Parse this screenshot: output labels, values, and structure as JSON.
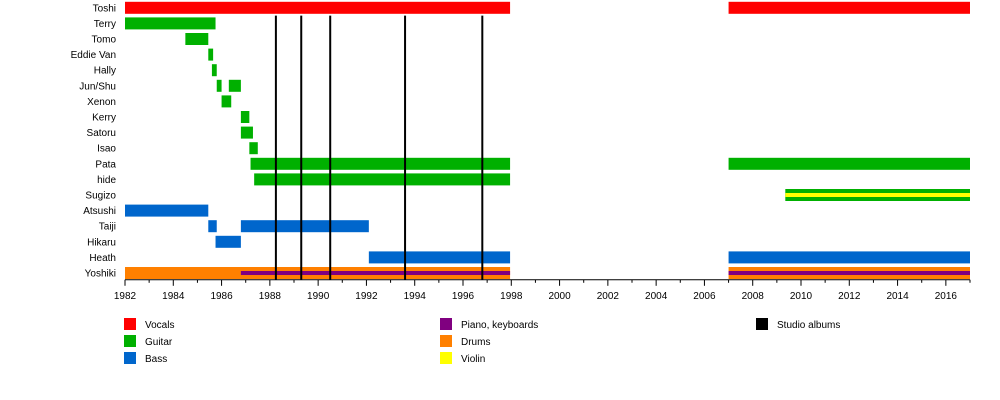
{
  "chart_data": {
    "type": "timeline",
    "title": "",
    "xlabel": "",
    "ylabel": "",
    "xlim": [
      1982,
      2017
    ],
    "x_ticks": [
      1982,
      1984,
      1986,
      1988,
      1990,
      1992,
      1994,
      1996,
      1998,
      2000,
      2002,
      2004,
      2006,
      2008,
      2010,
      2012,
      2014,
      2016
    ],
    "tick_labels": [
      "1982",
      "1984",
      "1986",
      "1988",
      "1990",
      "1992",
      "1994",
      "1996",
      "1998",
      "2000",
      "2002",
      "2004",
      "2006",
      "2008",
      "2010",
      "2012",
      "2014",
      "2016"
    ],
    "grid": false,
    "legend_position": "bottom",
    "colors": {
      "vocals": "#ff0000",
      "guitar": "#00b000",
      "bass": "#0066cc",
      "piano": "#800080",
      "drums": "#ff8000",
      "violin": "#ffff00",
      "studio_albums": "#000000"
    },
    "members": [
      {
        "name": "Toshi",
        "bars": [
          {
            "role": "vocals",
            "start": 1982,
            "end": 1997.95
          },
          {
            "role": "vocals",
            "start": 2007,
            "end": 2017
          }
        ]
      },
      {
        "name": "Terry",
        "bars": [
          {
            "role": "guitar",
            "start": 1982,
            "end": 1985.75
          }
        ]
      },
      {
        "name": "Tomo",
        "bars": [
          {
            "role": "guitar",
            "start": 1984.5,
            "end": 1985.45
          }
        ]
      },
      {
        "name": "Eddie Van",
        "bars": [
          {
            "role": "guitar",
            "start": 1985.45,
            "end": 1985.65
          }
        ]
      },
      {
        "name": "Hally",
        "bars": [
          {
            "role": "guitar",
            "start": 1985.6,
            "end": 1985.8
          }
        ]
      },
      {
        "name": "Jun/Shu",
        "bars": [
          {
            "role": "guitar",
            "start": 1985.8,
            "end": 1986.0
          },
          {
            "role": "guitar",
            "start": 1986.3,
            "end": 1986.8
          }
        ]
      },
      {
        "name": "Xenon",
        "bars": [
          {
            "role": "guitar",
            "start": 1986.0,
            "end": 1986.4
          }
        ]
      },
      {
        "name": "Kerry",
        "bars": [
          {
            "role": "guitar",
            "start": 1986.8,
            "end": 1987.15
          }
        ]
      },
      {
        "name": "Satoru",
        "bars": [
          {
            "role": "guitar",
            "start": 1986.8,
            "end": 1987.3
          }
        ]
      },
      {
        "name": "Isao",
        "bars": [
          {
            "role": "guitar",
            "start": 1987.15,
            "end": 1987.5
          }
        ]
      },
      {
        "name": "Pata",
        "bars": [
          {
            "role": "guitar",
            "start": 1987.2,
            "end": 1997.95
          },
          {
            "role": "guitar",
            "start": 2007,
            "end": 2017
          }
        ]
      },
      {
        "name": "hide",
        "bars": [
          {
            "role": "guitar",
            "start": 1987.35,
            "end": 1997.95
          }
        ]
      },
      {
        "name": "Sugizo",
        "bars": [
          {
            "role": "guitar",
            "start": 2009.35,
            "end": 2017,
            "overlay": "violin"
          }
        ]
      },
      {
        "name": "Atsushi",
        "bars": [
          {
            "role": "bass",
            "start": 1982,
            "end": 1985.45
          }
        ]
      },
      {
        "name": "Taiji",
        "bars": [
          {
            "role": "bass",
            "start": 1985.45,
            "end": 1985.8
          },
          {
            "role": "bass",
            "start": 1986.8,
            "end": 1992.1
          }
        ]
      },
      {
        "name": "Hikaru",
        "bars": [
          {
            "role": "bass",
            "start": 1985.75,
            "end": 1986.8
          }
        ]
      },
      {
        "name": "Heath",
        "bars": [
          {
            "role": "bass",
            "start": 1992.1,
            "end": 1997.95
          },
          {
            "role": "bass",
            "start": 2007,
            "end": 2017
          }
        ]
      },
      {
        "name": "Yoshiki",
        "bars": [
          {
            "role": "drums",
            "start": 1982,
            "end": 1997.95
          },
          {
            "role": "drums",
            "start": 2007,
            "end": 2017
          }
        ],
        "overlays": [
          {
            "role": "piano",
            "start": 1986.8,
            "end": 1997.95
          },
          {
            "role": "piano",
            "start": 2007,
            "end": 2017
          }
        ]
      }
    ],
    "studio_albums": [
      1988.25,
      1989.3,
      1990.5,
      1993.6,
      1996.8
    ],
    "legend": [
      {
        "key": "vocals",
        "label": "Vocals",
        "column": 0,
        "row": 0
      },
      {
        "key": "guitar",
        "label": "Guitar",
        "column": 0,
        "row": 1
      },
      {
        "key": "bass",
        "label": "Bass",
        "column": 0,
        "row": 2
      },
      {
        "key": "piano",
        "label": "Piano, keyboards",
        "column": 1,
        "row": 0
      },
      {
        "key": "drums",
        "label": "Drums",
        "column": 1,
        "row": 1
      },
      {
        "key": "violin",
        "label": "Violin",
        "column": 1,
        "row": 2
      },
      {
        "key": "studio_albums",
        "label": "Studio albums",
        "column": 2,
        "row": 0
      }
    ]
  }
}
